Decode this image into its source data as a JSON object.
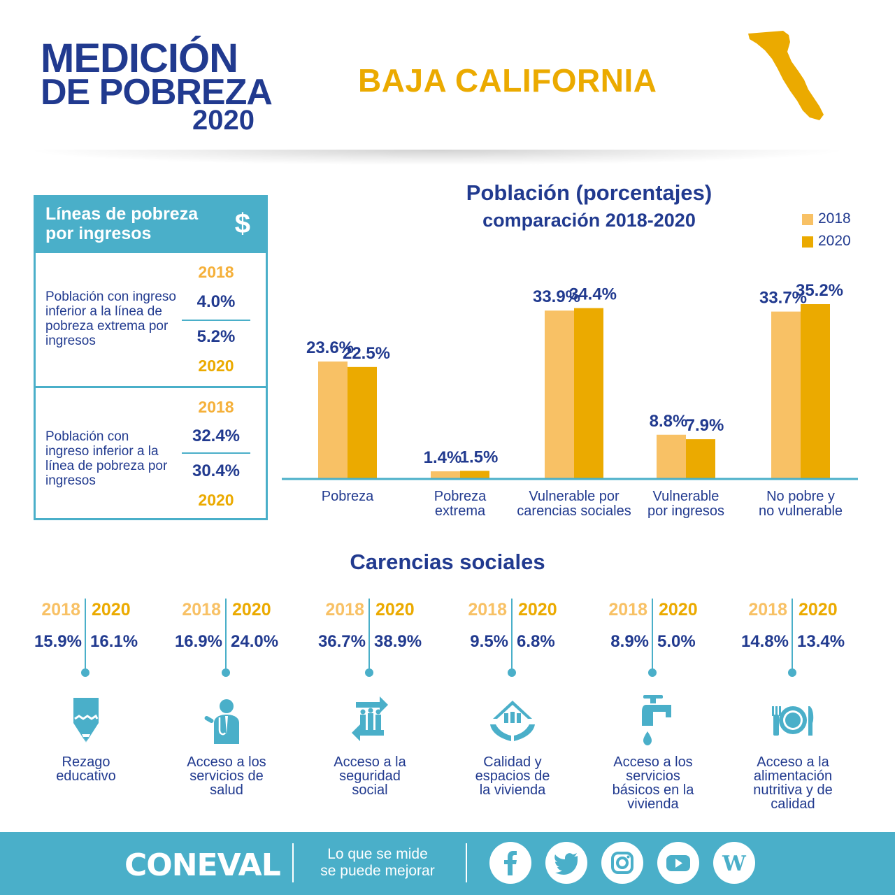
{
  "header": {
    "logo_line1": "MEDICIÓN",
    "logo_line2": "DE POBREZA",
    "logo_year": "2020",
    "state": "BAJA CALIFORNIA"
  },
  "colors": {
    "navy": "#213a8f",
    "teal": "#4aafc9",
    "light_gold": "#f8c165",
    "gold": "#ebaa00"
  },
  "lineas": {
    "title": "Líneas de pobreza por ingresos",
    "icon": "dollar-icon",
    "rows": [
      {
        "desc": "Población con ingreso inferior a la línea de pobreza extrema por ingresos",
        "year_top": "2018",
        "v2018": "4.0%",
        "v2020": "5.2%",
        "year_bottom": "2020"
      },
      {
        "desc": "Población con ingreso inferior a la línea de pobreza por ingresos",
        "year_top": "2018",
        "v2018": "32.4%",
        "v2020": "30.4%",
        "year_bottom": "2020"
      }
    ]
  },
  "chart_data": {
    "type": "bar",
    "title": "Población (porcentajes)",
    "subtitle": "comparación 2018-2020",
    "categories": [
      "Pobreza",
      "Pobreza extrema",
      "Vulnerable por carencias sociales",
      "Vulnerable por ingresos",
      "No pobre y no vulnerable"
    ],
    "series": [
      {
        "name": "2018",
        "values": [
          23.6,
          1.4,
          33.9,
          8.8,
          33.7
        ],
        "labels": [
          "23.6%",
          "1.4%",
          "33.9%",
          "8.8%",
          "33.7%"
        ]
      },
      {
        "name": "2020",
        "values": [
          22.5,
          1.5,
          34.4,
          7.9,
          35.2
        ],
        "labels": [
          "22.5%",
          "1.5%",
          "34.4%",
          "7.9%",
          "35.2%"
        ]
      }
    ],
    "legend": "top-right",
    "grid": false,
    "ylim": [
      0,
      35.2
    ]
  },
  "cat_lines": [
    [
      "Pobreza"
    ],
    [
      "Pobreza",
      "extrema"
    ],
    [
      "Vulnerable por",
      "carencias sociales"
    ],
    [
      "Vulnerable",
      "por ingresos"
    ],
    [
      "No pobre y",
      "no vulnerable"
    ]
  ],
  "carencias": {
    "title": "Carencias sociales",
    "items": [
      {
        "y18": "2018",
        "y20": "2020",
        "v18": "15.9%",
        "v20": "16.1%",
        "icon": "pencil-icon",
        "label": [
          "Rezago",
          "educativo"
        ]
      },
      {
        "y18": "2018",
        "y20": "2020",
        "v18": "16.9%",
        "v20": "24.0%",
        "icon": "doctor-icon",
        "label": [
          "Acceso a los",
          "servicios de",
          "salud"
        ]
      },
      {
        "y18": "2018",
        "y20": "2020",
        "v18": "36.7%",
        "v20": "38.9%",
        "icon": "social-security-icon",
        "label": [
          "Acceso a la",
          "seguridad",
          "social"
        ]
      },
      {
        "y18": "2018",
        "y20": "2020",
        "v18": "9.5%",
        "v20": "6.8%",
        "icon": "house-hands-icon",
        "label": [
          "Calidad y",
          "espacios de",
          "la vivienda"
        ]
      },
      {
        "y18": "2018",
        "y20": "2020",
        "v18": "8.9%",
        "v20": "5.0%",
        "icon": "faucet-icon",
        "label": [
          "Acceso a los",
          "servicios",
          "básicos en la",
          "vivienda"
        ]
      },
      {
        "y18": "2018",
        "y20": "2020",
        "v18": "14.8%",
        "v20": "13.4%",
        "icon": "plate-cutlery-icon",
        "label": [
          "Acceso a la",
          "alimentación",
          "nutritiva y de",
          "calidad"
        ]
      }
    ]
  },
  "footer": {
    "brand": "CONEVAL",
    "slogan_line1": "Lo que se mide",
    "slogan_line2": "se puede mejorar",
    "social": [
      {
        "icon": "facebook-icon",
        "glyph": "f"
      },
      {
        "icon": "twitter-icon",
        "glyph": ""
      },
      {
        "icon": "instagram-icon",
        "glyph": ""
      },
      {
        "icon": "youtube-icon",
        "glyph": ""
      },
      {
        "icon": "wordpress-icon",
        "glyph": "W"
      }
    ]
  }
}
